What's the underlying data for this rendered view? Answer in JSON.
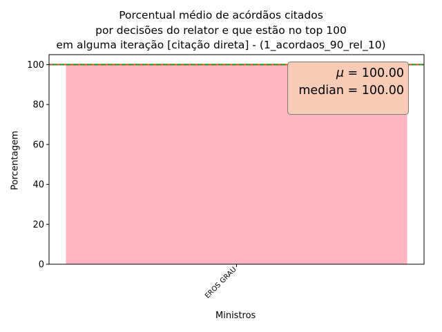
{
  "chart_data": {
    "type": "bar",
    "title_lines": [
      "Porcentual médio de acórdãos citados",
      "por decisões do relator e que estão no top 100",
      "em alguma iteração [citação direta] - (1_acordaos_90_rel_10)"
    ],
    "xlabel": "Ministros",
    "ylabel": "Porcentagem",
    "categories": [
      "EROS GRAU"
    ],
    "values": [
      100.0
    ],
    "ylim": [
      0,
      105
    ],
    "yticks": [
      0,
      20,
      40,
      60,
      80,
      100
    ],
    "grid": false,
    "bar_color": "#ffb6c1",
    "mean_line": {
      "value": 100.0,
      "color": "#ff4500",
      "style": "dashed"
    },
    "median_line": {
      "value": 100.0,
      "color": "#228b22",
      "style": "dashed"
    },
    "stats_box": {
      "mu_symbol": "μ",
      "mu_text": " = 100.00",
      "median_text": "median = 100.00",
      "placement": "top-right",
      "background": "#f7cbb6"
    }
  }
}
